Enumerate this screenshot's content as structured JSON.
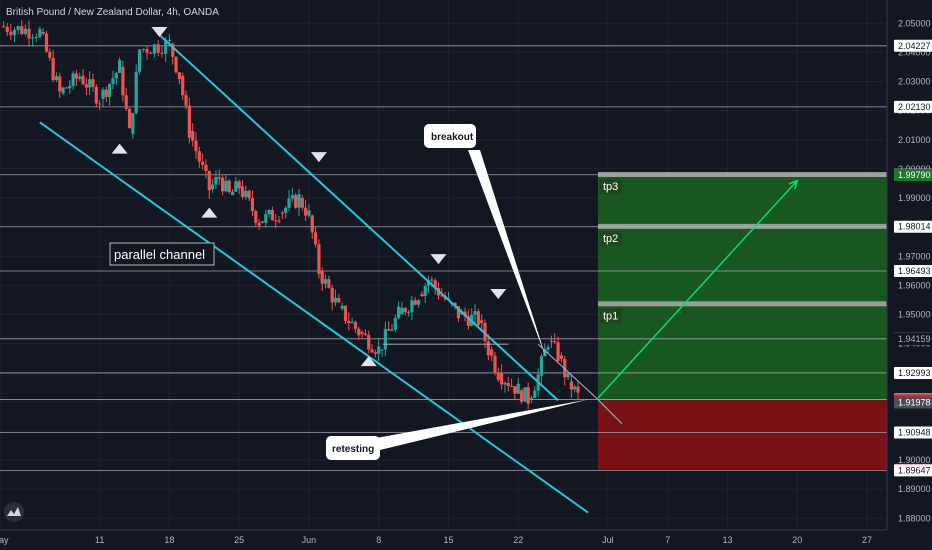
{
  "header": {
    "title": "British Pound / New Zealand Dollar, 4h, OANDA"
  },
  "colors": {
    "background": "#131722",
    "candle_up": "#26a69a",
    "candle_down": "#ef5350",
    "channel": "#26c6da",
    "horizontal_lines": "#b2b5be",
    "profit_zone": "#1b5e20",
    "loss_zone": "#7f1116",
    "tp_line": "#a5a5a5",
    "arrow": "#00e676",
    "callout_bg": "#ffffff"
  },
  "chart_data": {
    "type": "candlestick",
    "x_axis_labels": [
      "May",
      "11",
      "18",
      "25",
      "Jun",
      "8",
      "15",
      "22",
      "Jul",
      "7",
      "13",
      "20",
      "27"
    ],
    "y_axis_ticks": [
      "2.05000",
      "2.04000",
      "2.03000",
      "2.02000",
      "2.01000",
      "2.00000",
      "1.99000",
      "1.98000",
      "1.97000",
      "1.96000",
      "1.95000",
      "1.94000",
      "1.93000",
      "1.92000",
      "1.91000",
      "1.90000",
      "1.89000",
      "1.88000"
    ],
    "ylim": [
      1.876,
      2.058
    ],
    "price_path": [
      [
        "May",
        2.049
      ],
      [
        "2020-05-05",
        2.047
      ],
      [
        "2020-05-07",
        2.026
      ],
      [
        "2020-05-09",
        2.032
      ],
      [
        "11",
        2.024
      ],
      [
        "2020-05-13",
        2.035
      ],
      [
        "2020-05-14",
        2.012
      ],
      [
        "2020-05-15",
        2.041
      ],
      [
        "18",
        2.043
      ],
      [
        "2020-05-19",
        2.032
      ],
      [
        "2020-05-20",
        2.013
      ],
      [
        "2020-05-22",
        1.993
      ],
      [
        "2020-05-23",
        1.997
      ],
      [
        "2020-05-24",
        1.991
      ],
      [
        "25",
        1.994
      ],
      [
        "2020-05-27",
        1.982
      ],
      [
        "2020-05-29",
        1.985
      ],
      [
        "2020-05-31",
        1.99
      ],
      [
        "Jun",
        1.984
      ],
      [
        "2020-06-02",
        1.965
      ],
      [
        "2020-06-04",
        1.952
      ],
      [
        "2020-06-06",
        1.944
      ],
      [
        "8",
        1.938
      ],
      [
        "2020-06-10",
        1.95
      ],
      [
        "2020-06-12",
        1.957
      ],
      [
        "2020-06-13",
        1.962
      ],
      [
        "15",
        1.954
      ],
      [
        "2020-06-16",
        1.95
      ],
      [
        "2020-06-18",
        1.948
      ],
      [
        "2020-06-19",
        1.938
      ],
      [
        "2020-06-20",
        1.93
      ],
      [
        "22",
        1.924
      ],
      [
        "2020-06-23",
        1.921
      ],
      [
        "2020-06-24",
        1.929
      ],
      [
        "2020-06-25",
        1.941
      ],
      [
        "2020-06-26",
        1.936
      ],
      [
        "2020-06-27",
        1.927
      ],
      [
        "2020-06-28",
        1.922
      ]
    ],
    "horizontal_levels": [
      2.04227,
      2.0213,
      1.99799,
      1.98014,
      1.96493,
      1.94165,
      1.92993,
      1.92083,
      1.90948,
      1.89647
    ],
    "price_tags": [
      {
        "value": 2.05,
        "label": "2.05000",
        "bg": "#131722",
        "fg": "#b2b5be"
      },
      {
        "value": 2.04227,
        "label": "2.04227",
        "bg": "#ffffff",
        "fg": "#131722"
      },
      {
        "value": 2.0213,
        "label": "2.02130",
        "bg": "#ffffff",
        "fg": "#131722"
      },
      {
        "value": 1.99799,
        "label": "1.99799",
        "bg": "#ffffff",
        "fg": "#131722"
      },
      {
        "value": 1.9979,
        "label": "1.99790",
        "bg": "#1b7a2a",
        "fg": "#ffffff"
      },
      {
        "value": 1.98014,
        "label": "1.98014",
        "bg": "#ffffff",
        "fg": "#131722"
      },
      {
        "value": 1.96493,
        "label": "1.96493",
        "bg": "#ffffff",
        "fg": "#131722"
      },
      {
        "value": 1.94165,
        "label": "1.94165",
        "bg": "#ffffff",
        "fg": "#131722"
      },
      {
        "value": 1.94159,
        "label": "1.94159",
        "bg": "#131722",
        "fg": "#b2b5be"
      },
      {
        "value": 1.92993,
        "label": "1.92993",
        "bg": "#ffffff",
        "fg": "#131722"
      },
      {
        "value": 1.92083,
        "label": "1.92083",
        "bg": "#ffffff",
        "fg": "#131722"
      },
      {
        "value": 1.9206,
        "label": "1.92060",
        "bg": "#d32f2f",
        "fg": "#ffffff"
      },
      {
        "value": 1.91978,
        "label": "1.91978",
        "bg": "#4a4e58",
        "fg": "#ffffff"
      },
      {
        "value": 1.90948,
        "label": "1.90948",
        "bg": "#ffffff",
        "fg": "#131722"
      },
      {
        "value": 1.8967,
        "label": "1.89670",
        "bg": "#d32f2f",
        "fg": "#ffffff"
      },
      {
        "value": 1.89647,
        "label": "1.89647",
        "bg": "#ffffff",
        "fg": "#131722"
      }
    ],
    "position": {
      "entry": 1.9206,
      "target": 1.9979,
      "stop": 1.8967,
      "start_x": "2020-06-30",
      "end_x": "2020-07-29"
    },
    "take_profits": [
      {
        "label": "tp1",
        "value": 1.9535
      },
      {
        "label": "tp2",
        "value": 1.9801
      },
      {
        "label": "tp3",
        "value": 1.9979
      }
    ],
    "channel": {
      "upper": [
        [
          "2020-05-17",
          2.046
        ],
        [
          "2020-06-26",
          1.9205
        ]
      ],
      "lower": [
        [
          "2020-05-05",
          2.016
        ],
        [
          "2020-06-29",
          1.882
        ]
      ]
    },
    "annotations": {
      "channel_label": "parallel channel",
      "breakout_label": "breakout",
      "retesting_label": "retesting"
    },
    "markers": {
      "up": [
        [
          "2020-05-13",
          2.008
        ],
        [
          "2020-05-22",
          1.986
        ],
        [
          "2020-06-07",
          1.935
        ]
      ],
      "down": [
        [
          "2020-05-17",
          2.046
        ],
        [
          "2020-06-02",
          2.003
        ],
        [
          "2020-06-14",
          1.968
        ],
        [
          "2020-06-20",
          1.956
        ]
      ]
    }
  }
}
